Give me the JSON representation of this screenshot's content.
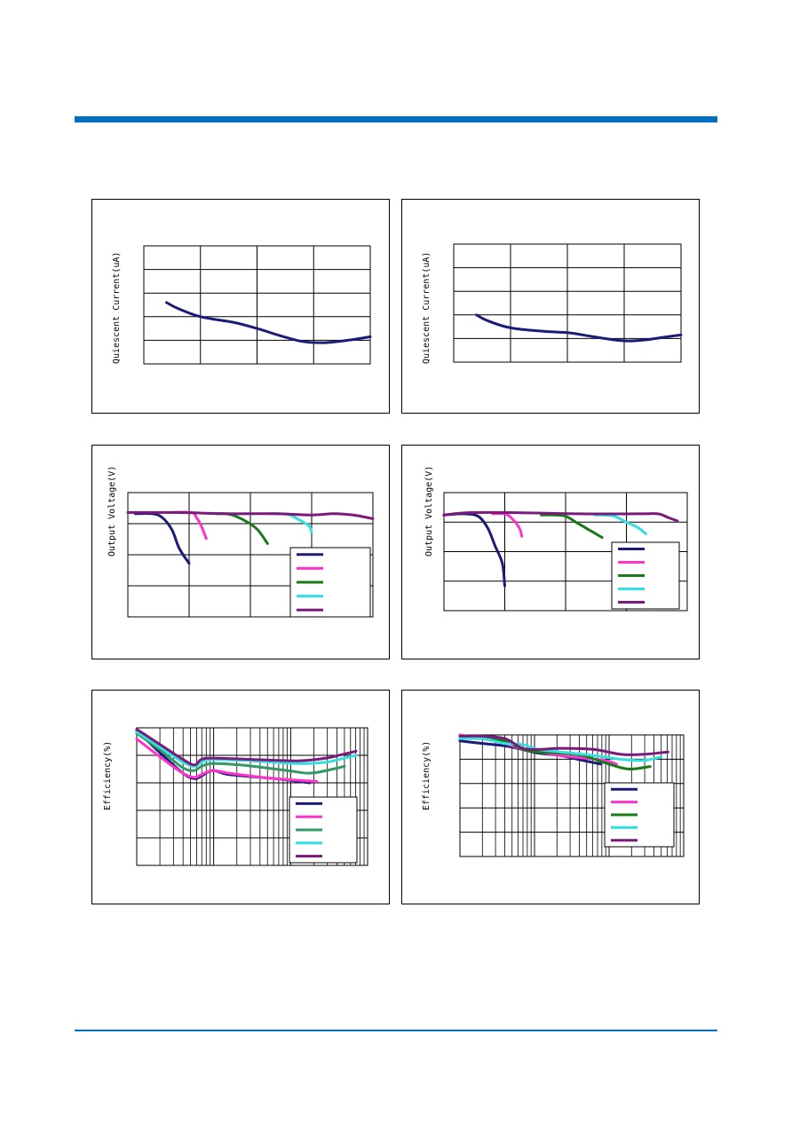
{
  "page": {
    "accent_color": "#0070c0",
    "rule_color": "#0070c0"
  },
  "chart_data": [
    {
      "id": "p1",
      "type": "line",
      "ylabel": "Quiescent Current(uA)",
      "xscale": "linear",
      "grid_cols": 4,
      "grid_rows": 5,
      "xlim": [
        0,
        100
      ],
      "ylim": [
        0,
        100
      ],
      "legend": false,
      "series": [
        {
          "name": "",
          "color": "#1b1b7a",
          "x": [
            10,
            15,
            25,
            40,
            50,
            60,
            70,
            80,
            90,
            100
          ],
          "y": [
            52,
            47,
            40,
            35,
            30,
            24,
            19,
            18,
            20,
            23
          ]
        }
      ]
    },
    {
      "id": "p2",
      "type": "line",
      "ylabel": "Quiescent Current(uA)",
      "xscale": "linear",
      "grid_cols": 4,
      "grid_rows": 5,
      "xlim": [
        0,
        100
      ],
      "ylim": [
        0,
        100
      ],
      "legend": false,
      "series": [
        {
          "name": "",
          "color": "#1b1b7a",
          "x": [
            10,
            15,
            25,
            40,
            50,
            60,
            70,
            77,
            85,
            92,
            100
          ],
          "y": [
            40,
            35,
            29,
            26,
            25,
            22,
            19,
            18,
            19,
            21,
            23
          ]
        }
      ]
    },
    {
      "id": "p3",
      "type": "line",
      "ylabel": "Output Voltage(V)",
      "xscale": "linear",
      "grid_cols": 4,
      "grid_rows": 4,
      "xlim": [
        0,
        100
      ],
      "ylim": [
        0,
        100
      ],
      "legend": true,
      "legend_position": "bottom-right",
      "series": [
        {
          "name": "",
          "color": "#1b1b7a",
          "x": [
            3,
            10,
            14,
            18,
            21,
            25
          ],
          "y": [
            83,
            83,
            80,
            70,
            55,
            43
          ]
        },
        {
          "name": "",
          "color": "#ff33cc",
          "x": [
            18,
            26,
            28,
            30,
            32
          ],
          "y": [
            84,
            84,
            80,
            73,
            63
          ]
        },
        {
          "name": "",
          "color": "#1a7a1a",
          "x": [
            36,
            40,
            44,
            49,
            53,
            57
          ],
          "y": [
            83,
            83,
            81,
            76,
            70,
            59
          ]
        },
        {
          "name": "",
          "color": "#33e0e0",
          "x": [
            58,
            62,
            66,
            70,
            74,
            75
          ],
          "y": [
            83,
            83,
            82,
            78,
            73,
            68
          ]
        },
        {
          "name": "",
          "color": "#7a1a7a",
          "x": [
            0,
            20,
            40,
            60,
            75,
            84,
            92,
            100
          ],
          "y": [
            84,
            84,
            83,
            83,
            82,
            83,
            82,
            79
          ]
        }
      ]
    },
    {
      "id": "p4",
      "type": "line",
      "ylabel": "Output Voltage(V)",
      "xscale": "linear",
      "grid_cols": 4,
      "grid_rows": 4,
      "xlim": [
        0,
        100
      ],
      "ylim": [
        0,
        100
      ],
      "legend": true,
      "legend_position": "bottom-right",
      "series": [
        {
          "name": "",
          "color": "#1b1b7a",
          "x": [
            0,
            8,
            14,
            18,
            21,
            24,
            25
          ],
          "y": [
            81,
            82,
            80,
            70,
            55,
            40,
            21
          ]
        },
        {
          "name": "",
          "color": "#ff33cc",
          "x": [
            20,
            25,
            28,
            31,
            32
          ],
          "y": [
            82,
            82,
            78,
            70,
            63
          ]
        },
        {
          "name": "",
          "color": "#1a7a1a",
          "x": [
            40,
            45,
            50,
            55,
            60,
            65
          ],
          "y": [
            81,
            81,
            80,
            74,
            68,
            62
          ]
        },
        {
          "name": "",
          "color": "#33e0e0",
          "x": [
            62,
            66,
            70,
            75,
            80,
            83
          ],
          "y": [
            81,
            81,
            80,
            75,
            70,
            65
          ]
        },
        {
          "name": "",
          "color": "#7a1a7a",
          "x": [
            0,
            10,
            30,
            55,
            80,
            88,
            92,
            96
          ],
          "y": [
            81,
            83,
            83,
            82,
            82,
            82,
            79,
            76
          ]
        }
      ]
    },
    {
      "id": "p5",
      "type": "line",
      "ylabel": "Efficiency(%)",
      "xscale": "log",
      "grid_cols": 3,
      "grid_rows": 5,
      "xlim": [
        0,
        100
      ],
      "ylim": [
        0,
        100
      ],
      "legend": true,
      "legend_position": "bottom-right",
      "series": [
        {
          "name": "",
          "color": "#1b1b7a",
          "x": [
            0,
            10,
            20,
            25,
            28,
            33,
            40,
            60,
            75
          ],
          "y": [
            98,
            82,
            67,
            63,
            65,
            69,
            66,
            63,
            60
          ]
        },
        {
          "name": "",
          "color": "#ff33cc",
          "x": [
            0,
            10,
            20,
            25,
            28,
            33,
            40,
            60,
            78
          ],
          "y": [
            92,
            79,
            67,
            64,
            66,
            69,
            67,
            63,
            61
          ]
        },
        {
          "name": "",
          "color": "#339966",
          "x": [
            0,
            10,
            20,
            25,
            28,
            33,
            45,
            65,
            75,
            85,
            90
          ],
          "y": [
            96,
            84,
            71,
            69,
            72,
            74,
            73,
            69,
            67,
            70,
            72
          ]
        },
        {
          "name": "",
          "color": "#33e0e0",
          "x": [
            0,
            10,
            20,
            25,
            28,
            33,
            50,
            70,
            82,
            90,
            95
          ],
          "y": [
            97,
            86,
            75,
            72,
            75,
            77,
            76,
            74,
            75,
            78,
            80
          ]
        },
        {
          "name": "",
          "color": "#7a1a7a",
          "x": [
            0,
            10,
            20,
            25,
            28,
            33,
            50,
            70,
            82,
            90,
            95
          ],
          "y": [
            99,
            88,
            77,
            73,
            77,
            78,
            77,
            76,
            78,
            81,
            83
          ]
        }
      ]
    },
    {
      "id": "p6",
      "type": "line",
      "ylabel": "Efficiency(%)",
      "xscale": "log",
      "grid_cols": 3,
      "grid_rows": 5,
      "xlim": [
        0,
        100
      ],
      "ylim": [
        0,
        100
      ],
      "legend": true,
      "legend_position": "bottom-right",
      "series": [
        {
          "name": "",
          "color": "#1b1b7a",
          "x": [
            0,
            10,
            20,
            28,
            35,
            45,
            55,
            63
          ],
          "y": [
            95,
            93,
            91,
            88,
            85,
            83,
            79,
            76
          ]
        },
        {
          "name": "",
          "color": "#ff33cc",
          "x": [
            0,
            10,
            20,
            28,
            35,
            45,
            55,
            65,
            70
          ],
          "y": [
            100,
            97,
            93,
            88,
            86,
            83,
            81,
            79,
            76
          ]
        },
        {
          "name": "",
          "color": "#1a7a1a",
          "x": [
            0,
            10,
            20,
            28,
            35,
            45,
            55,
            65,
            75,
            85
          ],
          "y": [
            97,
            97,
            95,
            88,
            86,
            85,
            83,
            77,
            72,
            74
          ]
        },
        {
          "name": "",
          "color": "#33e0e0",
          "x": [
            0,
            10,
            20,
            28,
            35,
            45,
            60,
            72,
            82,
            90
          ],
          "y": [
            97,
            97,
            93,
            92,
            88,
            86,
            83,
            80,
            79,
            82
          ]
        },
        {
          "name": "",
          "color": "#7a1a7a",
          "x": [
            0,
            10,
            20,
            28,
            35,
            45,
            60,
            72,
            82,
            93
          ],
          "y": [
            99,
            99,
            97,
            89,
            88,
            89,
            88,
            84,
            84,
            86
          ]
        }
      ]
    }
  ]
}
